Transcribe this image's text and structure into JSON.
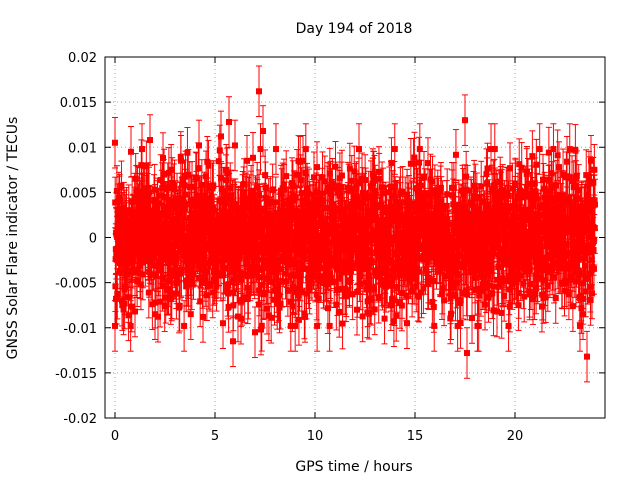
{
  "chart_data": {
    "type": "scatter",
    "title": "Day 194 of 2018",
    "xlabel": "GPS time / hours",
    "ylabel": "GNSS Solar Flare indicator / TECUs",
    "xlim": [
      -0.5,
      24.5
    ],
    "ylim": [
      -0.02,
      0.02
    ],
    "x_ticks": [
      0,
      5,
      10,
      15,
      20
    ],
    "x_tick_labels": [
      "0",
      "5",
      "10",
      "15",
      "20"
    ],
    "y_ticks": [
      -0.02,
      -0.015,
      -0.01,
      -0.005,
      0,
      0.005,
      0.01,
      0.015,
      0.02
    ],
    "y_tick_labels": [
      "-0.02",
      "-0.015",
      "-0.01",
      "-0.005",
      "0",
      "0.005",
      "0.01",
      "0.015",
      "0.02"
    ],
    "grid": true,
    "series_color": "#ff0000",
    "marker": "square",
    "error_bars": true,
    "typical_error": 0.0028,
    "x_range": [
      0,
      24
    ],
    "noise_sigma": 0.0038,
    "points": [
      {
        "x": 0.0,
        "y": 0.0105
      },
      {
        "x": 0.05,
        "y": -0.0068
      },
      {
        "x": 0.35,
        "y": -0.007
      },
      {
        "x": 0.8,
        "y": 0.0095
      },
      {
        "x": 1.0,
        "y": -0.0082
      },
      {
        "x": 1.35,
        "y": 0.0098
      },
      {
        "x": 1.75,
        "y": 0.0108
      },
      {
        "x": 2.0,
        "y": -0.0085
      },
      {
        "x": 2.4,
        "y": 0.0088
      },
      {
        "x": 3.3,
        "y": 0.0085
      },
      {
        "x": 4.2,
        "y": 0.0102
      },
      {
        "x": 4.4,
        "y": -0.0088
      },
      {
        "x": 5.3,
        "y": 0.0112
      },
      {
        "x": 5.4,
        "y": -0.0095
      },
      {
        "x": 5.7,
        "y": 0.0128
      },
      {
        "x": 5.9,
        "y": -0.0115
      },
      {
        "x": 6.0,
        "y": 0.0102
      },
      {
        "x": 6.3,
        "y": -0.009
      },
      {
        "x": 6.6,
        "y": 0.0085
      },
      {
        "x": 7.2,
        "y": 0.0162
      },
      {
        "x": 7.4,
        "y": 0.0118
      },
      {
        "x": 7.0,
        "y": -0.0105
      },
      {
        "x": 7.3,
        "y": -0.0102
      },
      {
        "x": 9.4,
        "y": 0.0085
      },
      {
        "x": 9.5,
        "y": -0.0088
      },
      {
        "x": 10.1,
        "y": 0.0078
      },
      {
        "x": 12.2,
        "y": 0.0098
      },
      {
        "x": 12.1,
        "y": -0.008
      },
      {
        "x": 14.6,
        "y": -0.0095
      },
      {
        "x": 15.2,
        "y": 0.0083
      },
      {
        "x": 16.8,
        "y": -0.0085
      },
      {
        "x": 17.5,
        "y": 0.013
      },
      {
        "x": 17.6,
        "y": -0.0128
      },
      {
        "x": 19.1,
        "y": -0.0082
      },
      {
        "x": 22.2,
        "y": 0.0078
      },
      {
        "x": 23.4,
        "y": -0.0085
      },
      {
        "x": 23.6,
        "y": -0.0132
      },
      {
        "x": 23.8,
        "y": 0.0085
      },
      {
        "x": 23.85,
        "y": -0.0062
      }
    ]
  }
}
